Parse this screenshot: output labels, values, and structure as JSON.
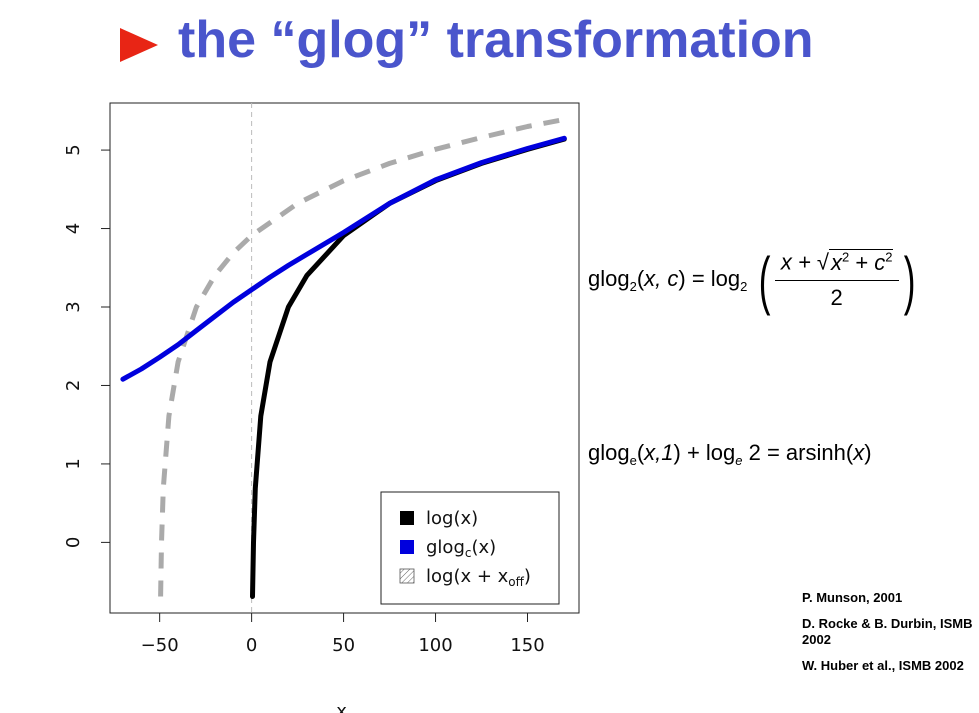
{
  "header": {
    "title": "the “glog” transformation"
  },
  "equations": {
    "eq1": {
      "lhs_fn": "glog",
      "lhs_sub": "2",
      "lhs_args": "x, c",
      "rhs_fn": "log",
      "rhs_sub": "2",
      "numerator_x": "x + ",
      "sqrt_x": "x",
      "sqrt_sq": "2",
      "sqrt_plus": " + ",
      "sqrt_c": "c",
      "denominator": "2"
    },
    "eq2": {
      "lhs_fn": "glog",
      "lhs_sub": "e",
      "lhs_args": "x,1",
      "plus": " + log",
      "log_sub": "e",
      "rest": " 2 = arsinh(",
      "x": "x",
      "close": ")"
    }
  },
  "references": [
    "P. Munson, 2001",
    "D. Rocke & B. Durbin, ISMB 2002",
    "W. Huber et al., ISMB 2002"
  ],
  "colors": {
    "title": "#4a55cc",
    "bullet": "#e82515",
    "log": "#000000",
    "glog": "#0000dd",
    "log_offset": "#aaaaaa"
  },
  "chart_data": {
    "type": "line",
    "xlabel": "x",
    "ylabel": "",
    "xlim": [
      -77,
      178
    ],
    "ylim": [
      -0.9,
      5.6
    ],
    "xticks": [
      -50,
      0,
      50,
      100,
      150
    ],
    "yticks": [
      0,
      1,
      2,
      3,
      4,
      5
    ],
    "vline_x": 0,
    "legend_position": "bottom-right",
    "series": [
      {
        "name": "log(x)",
        "color": "#000000",
        "style": "solid",
        "x": [
          0.5,
          1,
          2,
          5,
          10,
          20,
          30,
          50,
          75,
          100,
          125,
          150,
          170
        ],
        "y": [
          -0.69,
          0.0,
          0.69,
          1.61,
          2.3,
          3.0,
          3.4,
          3.91,
          4.32,
          4.61,
          4.83,
          5.01,
          5.14
        ]
      },
      {
        "name": "glog_c(x)",
        "color": "#0000dd",
        "style": "solid",
        "x": [
          -70,
          -60,
          -50,
          -40,
          -30,
          -20,
          -10,
          0,
          10,
          20,
          30,
          50,
          75,
          100,
          125,
          150,
          170
        ],
        "y": [
          2.08,
          2.21,
          2.36,
          2.52,
          2.7,
          2.88,
          3.06,
          3.22,
          3.38,
          3.53,
          3.67,
          3.95,
          4.32,
          4.62,
          4.84,
          5.02,
          5.15
        ]
      },
      {
        "name": "log(x + x_off)",
        "color": "#aaaaaa",
        "style": "dashed",
        "x": [
          -49.5,
          -49,
          -48,
          -45,
          -40,
          -30,
          -20,
          -10,
          0,
          25,
          50,
          75,
          100,
          125,
          150,
          170
        ],
        "y": [
          -0.69,
          0.0,
          0.69,
          1.61,
          2.3,
          3.0,
          3.4,
          3.69,
          3.91,
          4.32,
          4.61,
          4.83,
          5.01,
          5.16,
          5.3,
          5.39
        ]
      }
    ],
    "legend": [
      {
        "label": "log(x)",
        "color": "#000000",
        "swatch": "solid"
      },
      {
        "label": "glog_c(x)",
        "color": "#0000dd",
        "swatch": "solid"
      },
      {
        "label": "log(x + x_off)",
        "color": "#aaaaaa",
        "swatch": "hatched"
      }
    ]
  }
}
